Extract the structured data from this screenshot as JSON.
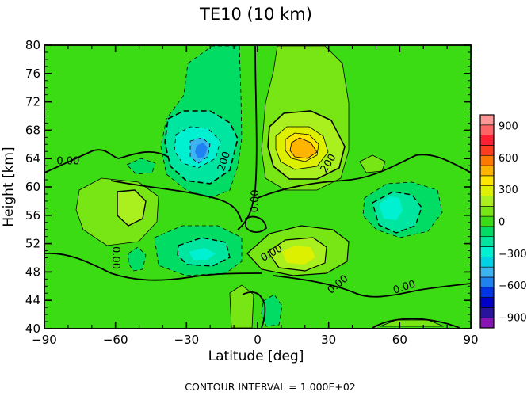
{
  "chart_data": {
    "type": "contour",
    "title": "TE10 (10 km)",
    "xlabel": "Latitude [deg]",
    "ylabel": "Height [km]",
    "xlim": [
      -90,
      90
    ],
    "ylim": [
      40,
      80
    ],
    "x_ticks": [
      "−90",
      "−60",
      "−30",
      "0",
      "30",
      "60",
      "90"
    ],
    "x_tick_values": [
      -90,
      -60,
      -30,
      0,
      30,
      60,
      90
    ],
    "y_ticks": [
      "40",
      "44",
      "48",
      "52",
      "56",
      "60",
      "64",
      "68",
      "72",
      "76",
      "80"
    ],
    "y_tick_values": [
      40,
      44,
      48,
      52,
      56,
      60,
      64,
      68,
      72,
      76,
      80
    ],
    "colorbar": {
      "range": [
        -1000,
        1000
      ],
      "step": 100,
      "labels": [
        "900",
        "600",
        "300",
        "0",
        "−300",
        "−600",
        "−900"
      ],
      "label_values": [
        900,
        600,
        300,
        0,
        -300,
        -600,
        -900
      ],
      "colors": [
        "#8a14b4",
        "#28149c",
        "#0000c8",
        "#0032e6",
        "#1e82f0",
        "#3cb4f0",
        "#00d2e6",
        "#00f0d2",
        "#00e6a0",
        "#00dc64",
        "#3cdc14",
        "#78e614",
        "#aaf01e",
        "#dcf000",
        "#ffe600",
        "#ffb400",
        "#ff7800",
        "#ff3c1e",
        "#ff1e32",
        "#ff6464",
        "#ff9696"
      ]
    },
    "contour_labels": [
      {
        "text": "0.00",
        "x": -80,
        "y": 63.6,
        "rotate": 0
      },
      {
        "text": "200",
        "x": -14,
        "y": 63.6,
        "rotate": -72
      },
      {
        "text": "200",
        "x": 30,
        "y": 63.3,
        "rotate": -58
      },
      {
        "text": "0.00",
        "x": -1,
        "y": 58,
        "rotate": -88
      },
      {
        "text": "0.00",
        "x": -60,
        "y": 50,
        "rotate": 90
      },
      {
        "text": "0.00",
        "x": 6,
        "y": 50.6,
        "rotate": -30
      },
      {
        "text": "0.00",
        "x": 34,
        "y": 46.2,
        "rotate": -40
      },
      {
        "text": "0.00",
        "x": 62,
        "y": 45.8,
        "rotate": -18
      }
    ],
    "footer": "CONTOUR INTERVAL = 1.000E+02"
  }
}
